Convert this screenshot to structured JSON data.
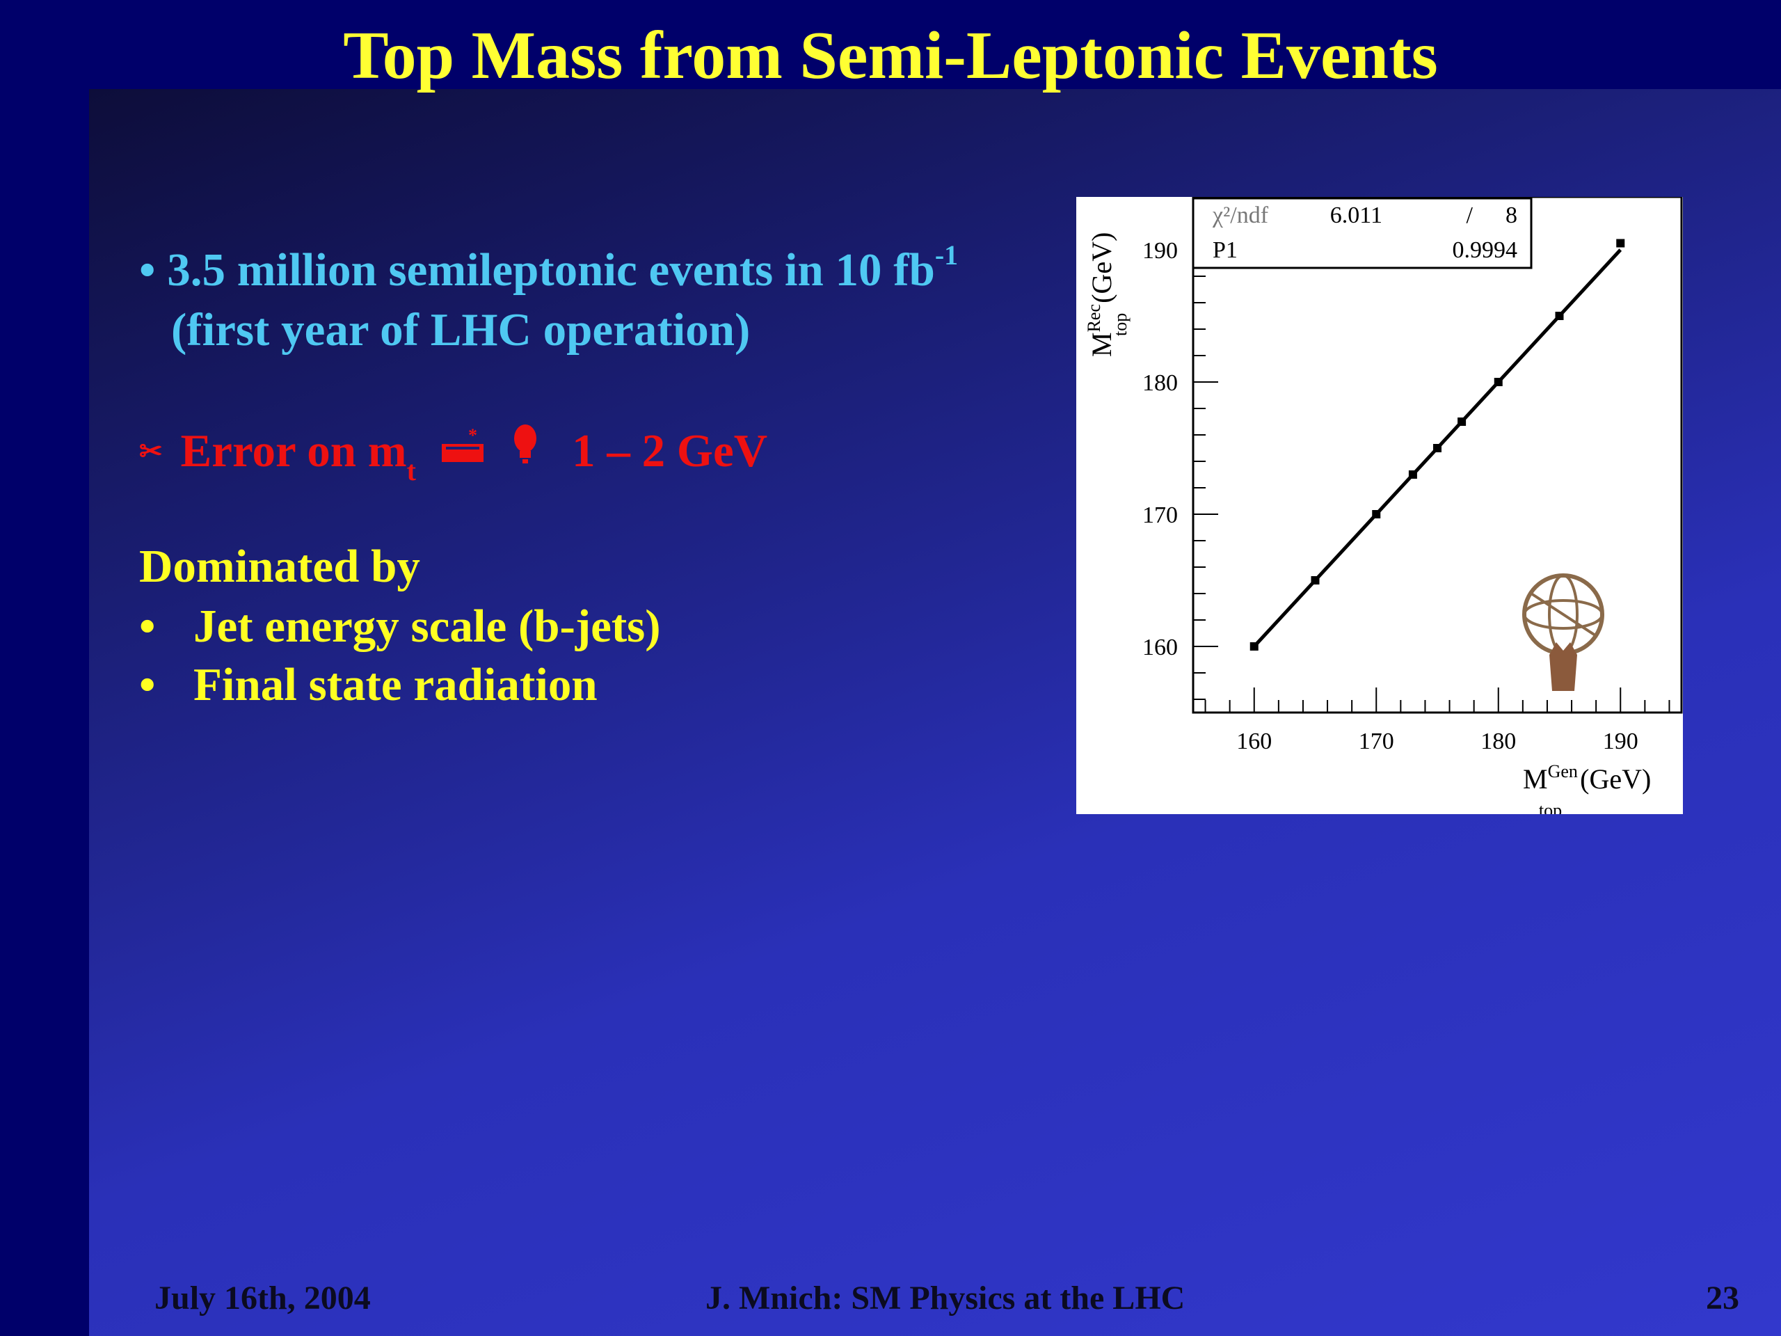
{
  "slide": {
    "title": "Top Mass from Semi-Leptonic Events",
    "bullet1": {
      "marker": "•",
      "line1_text": "3.5 million semileptonic events in 10 fb",
      "line1_sup": "-1",
      "line2": "(first year of LHC operation)"
    },
    "error_line": {
      "text_prefix": "Error on m",
      "subscript": "t",
      "value": "1 – 2 GeV",
      "icons": [
        "scissors-glyph-icon",
        "keyboard-glyph-icon",
        "bulb-glyph-icon"
      ]
    },
    "dominated": {
      "heading": "Dominated by",
      "items": [
        "Jet energy scale (b-jets)",
        "Final state radiation"
      ]
    },
    "footer": {
      "date": "July 16th, 2004",
      "center": "J. Mnich: SM Physics at the LHC",
      "page": "23"
    },
    "colors": {
      "title": "#ffff33",
      "bullet": "#4fc8f2",
      "error": "#ee1111",
      "dominated": "#ffff22"
    }
  },
  "chart_data": {
    "type": "scatter",
    "x": [
      160,
      165,
      170,
      173,
      175,
      177,
      180,
      185,
      190
    ],
    "y": [
      160,
      165,
      170,
      173,
      175,
      177,
      180,
      185,
      190.5
    ],
    "fit_line": {
      "x": [
        160,
        190
      ],
      "y": [
        160,
        190
      ]
    },
    "xlim": [
      155,
      195
    ],
    "ylim": [
      155,
      194
    ],
    "xticks": [
      "160",
      "170",
      "180",
      "190"
    ],
    "yticks": [
      "160",
      "170",
      "180",
      "190"
    ],
    "xlabel": {
      "main": "M",
      "sup": "Gen",
      "sub": "top",
      "unit": "(GeV)"
    },
    "ylabel": {
      "main": "M",
      "sup": "Rec",
      "sub": "top",
      "unit": "(GeV)"
    },
    "stats": {
      "chi2_label": "χ²/ndf",
      "chi2_value": "6.011",
      "slash": "/",
      "ndf": "8",
      "p1_label": "P1",
      "p1_value": "0.9994"
    },
    "grid": false,
    "logo": "atlas-logo"
  }
}
